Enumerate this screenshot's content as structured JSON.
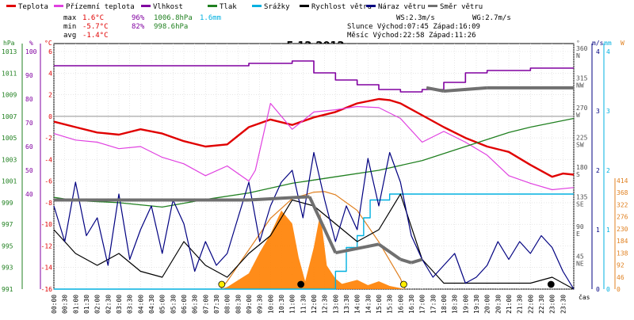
{
  "legend": [
    {
      "label": "Teplota",
      "color": "#e00000"
    },
    {
      "label": "Přízemní teplota",
      "color": "#e040e0"
    },
    {
      "label": "Vlhkost",
      "color": "#8000a0"
    },
    {
      "label": "Tlak",
      "color": "#208020"
    },
    {
      "label": "Srážky",
      "color": "#00b0e0"
    },
    {
      "label": "Rychlost větru",
      "color": "#000000"
    },
    {
      "label": "Náraz větru",
      "color": "#000080"
    },
    {
      "label": "Směr větru",
      "color": "#707070"
    }
  ],
  "stats": {
    "max_label": "max",
    "max_temp": "1.6°C",
    "max_hum": "96%",
    "max_press": "1006.8hPa",
    "max_rain": "1.6mm",
    "min_label": "min",
    "min_temp": "-5.7°C",
    "min_hum": "82%",
    "min_press": "998.6hPa",
    "avg_label": "avg",
    "avg_temp": "-1.4°C",
    "ws": "WS:2.3m/s",
    "wg": "WG:2.7m/s",
    "sun": "Slunce Východ:07:45  Západ:16:09",
    "moon": "Měsíc  Východ:22:58  Západ:11:26"
  },
  "chart_data": {
    "type": "line",
    "title": "5.12.2012",
    "xlabel": "čas",
    "axis_units": {
      "pressure": "hPa",
      "humidity": "%",
      "temperature": "°C",
      "direction": "°",
      "wind": "m/s",
      "rain": "mm",
      "radiation": "W"
    },
    "x_ticks": [
      "00:00",
      "00:30",
      "01:00",
      "01:30",
      "02:00",
      "02:30",
      "03:00",
      "03:30",
      "04:00",
      "04:30",
      "05:00",
      "05:30",
      "06:00",
      "06:30",
      "07:00",
      "07:30",
      "08:00",
      "08:30",
      "09:00",
      "09:30",
      "10:00",
      "10:30",
      "11:00",
      "11:30",
      "12:00",
      "12:30",
      "13:00",
      "13:30",
      "14:00",
      "14:30",
      "15:00",
      "15:30",
      "16:00",
      "16:30",
      "17:00",
      "17:30",
      "18:00",
      "18:30",
      "19:00",
      "19:30",
      "20:00",
      "20:30",
      "21:00",
      "21:30",
      "22:00",
      "22:30",
      "23:00",
      "23:30"
    ],
    "hpa_ticks": [
      "1013",
      "1011",
      "1009",
      "1007",
      "1005",
      "1003",
      "1001",
      "999",
      "997",
      "995",
      "993",
      "991"
    ],
    "pct_ticks": [
      "100",
      "90",
      "80",
      "70",
      "60",
      "50",
      "40"
    ],
    "temp_ticks": [
      "6",
      "4",
      "2",
      "0",
      "-2",
      "-4",
      "-6",
      "-8",
      "-10",
      "-12",
      "-14",
      "-16"
    ],
    "dir_ticks": [
      {
        "deg": "360",
        "dir": "N"
      },
      {
        "deg": "315",
        "dir": "NW"
      },
      {
        "deg": "270",
        "dir": "W"
      },
      {
        "deg": "225",
        "dir": "SW"
      },
      {
        "deg": "180",
        "dir": "S"
      },
      {
        "deg": "135",
        "dir": "SE"
      },
      {
        "deg": "90",
        "dir": "E"
      },
      {
        "deg": "45",
        "dir": "NE"
      }
    ],
    "wind_ticks": [
      "4",
      "3",
      "2",
      "1",
      "0"
    ],
    "rain_ticks": [
      "4",
      "3",
      "2",
      "1",
      "0"
    ],
    "rad_ticks": [
      "414",
      "368",
      "322",
      "276",
      "230",
      "184",
      "138",
      "92",
      "46",
      "0"
    ],
    "series": [
      {
        "name": "Teplota",
        "axis": "temperature",
        "color": "#e00000",
        "points": [
          [
            0,
            -0.5
          ],
          [
            1,
            -1.0
          ],
          [
            2,
            -1.5
          ],
          [
            3,
            -1.7
          ],
          [
            4,
            -1.2
          ],
          [
            5,
            -1.6
          ],
          [
            6,
            -2.3
          ],
          [
            7,
            -2.8
          ],
          [
            8,
            -2.6
          ],
          [
            9,
            -1.0
          ],
          [
            10,
            -0.3
          ],
          [
            11,
            -0.8
          ],
          [
            12,
            -0.1
          ],
          [
            13,
            0.4
          ],
          [
            14,
            1.2
          ],
          [
            15,
            1.6
          ],
          [
            15.5,
            1.5
          ],
          [
            16,
            1.2
          ],
          [
            17,
            0.1
          ],
          [
            18,
            -1.0
          ],
          [
            19,
            -2.0
          ],
          [
            20,
            -2.8
          ],
          [
            21,
            -3.3
          ],
          [
            22,
            -4.5
          ],
          [
            23,
            -5.6
          ],
          [
            23.5,
            -5.3
          ],
          [
            24,
            -5.4
          ]
        ]
      },
      {
        "name": "Přízemní teplota",
        "axis": "temperature",
        "color": "#e040e0",
        "points": [
          [
            0,
            -1.6
          ],
          [
            1,
            -2.2
          ],
          [
            2,
            -2.4
          ],
          [
            3,
            -3.0
          ],
          [
            4,
            -2.8
          ],
          [
            5,
            -3.8
          ],
          [
            6,
            -4.4
          ],
          [
            7,
            -5.5
          ],
          [
            8,
            -4.6
          ],
          [
            9,
            -6.0
          ],
          [
            9.3,
            -5.0
          ],
          [
            10,
            1.2
          ],
          [
            10.5,
            0.0
          ],
          [
            11,
            -1.2
          ],
          [
            12,
            0.4
          ],
          [
            13,
            0.6
          ],
          [
            14,
            0.9
          ],
          [
            15,
            0.8
          ],
          [
            16,
            -0.2
          ],
          [
            17,
            -2.4
          ],
          [
            18,
            -1.4
          ],
          [
            19,
            -2.4
          ],
          [
            20,
            -3.6
          ],
          [
            21,
            -5.5
          ],
          [
            22,
            -6.2
          ],
          [
            23,
            -6.8
          ],
          [
            24,
            -6.6
          ]
        ]
      },
      {
        "name": "Vlhkost",
        "axis": "humidity",
        "color": "#8000a0",
        "points": [
          [
            0,
            94
          ],
          [
            6,
            94
          ],
          [
            9,
            95
          ],
          [
            11,
            96
          ],
          [
            12,
            91
          ],
          [
            13,
            88
          ],
          [
            14,
            86
          ],
          [
            15,
            84
          ],
          [
            16,
            83
          ],
          [
            17,
            84
          ],
          [
            18,
            87
          ],
          [
            19,
            91
          ],
          [
            20,
            92
          ],
          [
            21,
            92
          ],
          [
            22,
            93
          ],
          [
            24,
            93
          ]
        ]
      },
      {
        "name": "Tlak",
        "axis": "pressure",
        "color": "#208020",
        "points": [
          [
            0,
            999.5
          ],
          [
            1,
            999.2
          ],
          [
            3,
            999.0
          ],
          [
            5,
            998.6
          ],
          [
            7,
            999.3
          ],
          [
            9,
            999.9
          ],
          [
            11,
            1000.8
          ],
          [
            13,
            1001.4
          ],
          [
            15,
            1002.0
          ],
          [
            17,
            1002.9
          ],
          [
            19,
            1004.2
          ],
          [
            21,
            1005.5
          ],
          [
            22,
            1006.0
          ],
          [
            24,
            1006.8
          ]
        ]
      },
      {
        "name": "Srážky",
        "axis": "rain",
        "color": "#00b0e0",
        "points": [
          [
            0,
            0
          ],
          [
            12.5,
            0
          ],
          [
            13,
            0.3
          ],
          [
            13.5,
            0.7
          ],
          [
            14,
            0.9
          ],
          [
            14.3,
            1.2
          ],
          [
            14.6,
            1.5
          ],
          [
            15.5,
            1.6
          ],
          [
            24,
            1.6
          ]
        ]
      },
      {
        "name": "Rychlost větru",
        "axis": "wind",
        "color": "#000000",
        "points": [
          [
            0,
            1.0
          ],
          [
            1,
            0.6
          ],
          [
            2,
            0.4
          ],
          [
            3,
            0.6
          ],
          [
            4,
            0.3
          ],
          [
            5,
            0.2
          ],
          [
            6,
            0.8
          ],
          [
            7,
            0.4
          ],
          [
            8,
            0.2
          ],
          [
            9,
            0.6
          ],
          [
            10,
            0.9
          ],
          [
            11,
            1.5
          ],
          [
            12,
            1.4
          ],
          [
            13,
            1.1
          ],
          [
            14,
            0.8
          ],
          [
            15,
            1.0
          ],
          [
            16,
            1.6
          ],
          [
            17,
            0.5
          ],
          [
            18,
            0.1
          ],
          [
            19,
            0.1
          ],
          [
            20,
            0.1
          ],
          [
            21,
            0.1
          ],
          [
            22,
            0.1
          ],
          [
            23,
            0.2
          ],
          [
            24,
            0.0
          ]
        ]
      },
      {
        "name": "Náraz větru",
        "axis": "wind",
        "color": "#000080",
        "points": [
          [
            0,
            1.4
          ],
          [
            0.5,
            0.8
          ],
          [
            1,
            1.8
          ],
          [
            1.5,
            0.9
          ],
          [
            2,
            1.2
          ],
          [
            2.5,
            0.4
          ],
          [
            3,
            1.6
          ],
          [
            3.5,
            0.5
          ],
          [
            4,
            1.0
          ],
          [
            4.5,
            1.4
          ],
          [
            5,
            0.6
          ],
          [
            5.5,
            1.5
          ],
          [
            6,
            1.1
          ],
          [
            6.5,
            0.3
          ],
          [
            7,
            0.8
          ],
          [
            7.5,
            0.4
          ],
          [
            8,
            0.6
          ],
          [
            8.5,
            1.2
          ],
          [
            9,
            1.8
          ],
          [
            9.5,
            0.8
          ],
          [
            10,
            1.4
          ],
          [
            10.5,
            1.8
          ],
          [
            11,
            2.0
          ],
          [
            11.5,
            1.2
          ],
          [
            12,
            2.3
          ],
          [
            12.5,
            1.5
          ],
          [
            13,
            0.8
          ],
          [
            13.5,
            1.4
          ],
          [
            14,
            1.0
          ],
          [
            14.5,
            2.2
          ],
          [
            15,
            1.4
          ],
          [
            15.5,
            2.3
          ],
          [
            16,
            1.8
          ],
          [
            16.5,
            0.9
          ],
          [
            17,
            0.5
          ],
          [
            17.5,
            0.2
          ],
          [
            18,
            0.4
          ],
          [
            18.5,
            0.6
          ],
          [
            19,
            0.1
          ],
          [
            19.5,
            0.2
          ],
          [
            20,
            0.4
          ],
          [
            20.5,
            0.8
          ],
          [
            21,
            0.5
          ],
          [
            21.5,
            0.8
          ],
          [
            22,
            0.6
          ],
          [
            22.5,
            0.9
          ],
          [
            23,
            0.7
          ],
          [
            23.5,
            0.3
          ],
          [
            24,
            0.0
          ]
        ]
      },
      {
        "name": "Směr větru",
        "axis": "direction",
        "color": "#707070",
        "points": [
          [
            0,
            135
          ],
          [
            6,
            135
          ],
          [
            9,
            135
          ],
          [
            11.8,
            140
          ],
          [
            13,
            55
          ],
          [
            15,
            68
          ],
          [
            16,
            45
          ],
          [
            16.5,
            40
          ],
          [
            17,
            45
          ],
          [
            17.2,
            305
          ],
          [
            18,
            300
          ],
          [
            20,
            305
          ],
          [
            24,
            305
          ]
        ]
      }
    ],
    "radiation": {
      "axis": "radiation",
      "color": "#ff8000",
      "points": [
        [
          7.7,
          0
        ],
        [
          8,
          8
        ],
        [
          9,
          60
        ],
        [
          9.5,
          140
        ],
        [
          10,
          210
        ],
        [
          10.5,
          300
        ],
        [
          11,
          250
        ],
        [
          11.3,
          120
        ],
        [
          11.6,
          30
        ],
        [
          12,
          160
        ],
        [
          12.3,
          290
        ],
        [
          12.6,
          90
        ],
        [
          13,
          40
        ],
        [
          13.3,
          20
        ],
        [
          14,
          35
        ],
        [
          14.5,
          15
        ],
        [
          15,
          30
        ],
        [
          15.5,
          12
        ],
        [
          16,
          4
        ],
        [
          16.2,
          0
        ]
      ]
    },
    "theoretical_radiation": {
      "axis": "radiation",
      "color": "#e08020",
      "points": [
        [
          7.7,
          0
        ],
        [
          8,
          30
        ],
        [
          9,
          150
        ],
        [
          10,
          270
        ],
        [
          11,
          345
        ],
        [
          12,
          370
        ],
        [
          12.5,
          372
        ],
        [
          13,
          360
        ],
        [
          14,
          300
        ],
        [
          15,
          180
        ],
        [
          16,
          40
        ],
        [
          16.2,
          0
        ]
      ]
    },
    "markers": [
      {
        "type": "sunrise",
        "x": 7.75,
        "color": "#ffee00"
      },
      {
        "type": "moonset",
        "x": 11.4,
        "color": "#000000"
      },
      {
        "type": "sunset",
        "x": 16.15,
        "color": "#ffee00"
      },
      {
        "type": "moonrise",
        "x": 22.95,
        "color": "#000000"
      }
    ]
  }
}
